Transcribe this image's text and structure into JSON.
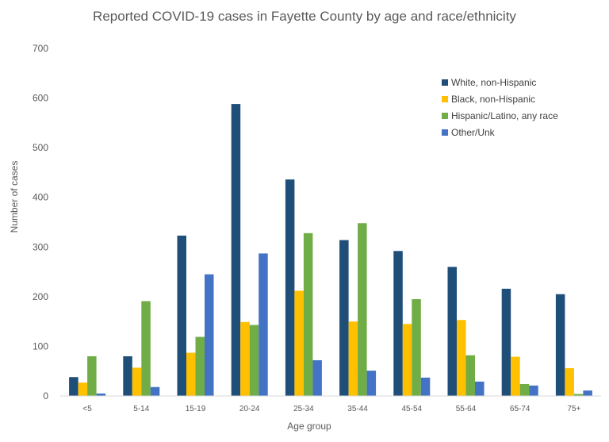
{
  "chart_data": {
    "type": "bar",
    "title": "Reported COVID-19 cases in Fayette County by age and race/ethnicity",
    "xlabel": "Age group",
    "ylabel": "Number of cases",
    "ylim": [
      0,
      700
    ],
    "yticks": [
      0,
      100,
      200,
      300,
      400,
      500,
      600,
      700
    ],
    "grid": false,
    "legend_position": "top-right",
    "categories": [
      "<5",
      "5-14",
      "15-19",
      "20-24",
      "25-34",
      "35-44",
      "45-54",
      "55-64",
      "65-74",
      "75+"
    ],
    "series": [
      {
        "name": "White, non-Hispanic",
        "color": "#1f4e79",
        "values": [
          38,
          80,
          323,
          588,
          436,
          314,
          292,
          260,
          216,
          205
        ]
      },
      {
        "name": "Black, non-Hispanic",
        "color": "#ffc000",
        "values": [
          27,
          57,
          87,
          149,
          212,
          150,
          145,
          153,
          79,
          56
        ]
      },
      {
        "name": "Hispanic/Latino, any race",
        "color": "#70ad47",
        "values": [
          80,
          191,
          119,
          143,
          328,
          348,
          195,
          82,
          24,
          4
        ]
      },
      {
        "name": "Other/Unk",
        "color": "#4472c4",
        "values": [
          5,
          18,
          245,
          287,
          72,
          51,
          37,
          29,
          21,
          11
        ]
      }
    ]
  }
}
